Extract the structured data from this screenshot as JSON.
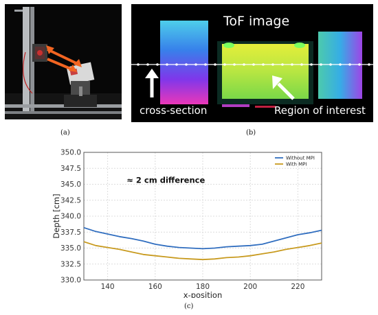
{
  "panel_a": {
    "caption": "(a)"
  },
  "panel_b": {
    "caption": "(b)",
    "title": "ToF image",
    "label_left": "cross-section",
    "label_right": "Region of interest"
  },
  "panel_c": {
    "caption": "(c)"
  },
  "colors": {
    "without_mpi": "#2f6dbf",
    "with_mpi": "#c89a1e",
    "arrow_orange": "#f26522"
  },
  "chart_data": {
    "type": "line",
    "xlabel": "x-position",
    "ylabel": "Depth [cm]",
    "xlim": [
      130,
      230
    ],
    "ylim": [
      330.0,
      350.0
    ],
    "xticks": [
      140,
      160,
      180,
      200,
      220
    ],
    "yticks": [
      "330.0",
      "332.5",
      "335.0",
      "337.5",
      "340.0",
      "342.5",
      "345.0",
      "347.5",
      "350.0"
    ],
    "grid": true,
    "legend_position": "top-right",
    "annotation": "≈ 2 cm difference",
    "x": [
      130,
      135,
      140,
      145,
      150,
      155,
      160,
      165,
      170,
      175,
      180,
      185,
      190,
      195,
      200,
      205,
      210,
      215,
      220,
      225,
      230
    ],
    "series": [
      {
        "name": "Without MPI",
        "color": "#2f6dbf",
        "values": [
          338.2,
          337.6,
          337.2,
          336.8,
          336.5,
          336.1,
          335.6,
          335.3,
          335.1,
          335.0,
          334.9,
          335.0,
          335.2,
          335.3,
          335.4,
          335.6,
          336.1,
          336.6,
          337.1,
          337.4,
          337.8
        ]
      },
      {
        "name": "With MPI",
        "color": "#c89a1e",
        "values": [
          336.0,
          335.4,
          335.1,
          334.8,
          334.4,
          334.0,
          333.8,
          333.6,
          333.4,
          333.3,
          333.2,
          333.3,
          333.5,
          333.6,
          333.8,
          334.1,
          334.4,
          334.8,
          335.1,
          335.4,
          335.8
        ]
      }
    ]
  }
}
